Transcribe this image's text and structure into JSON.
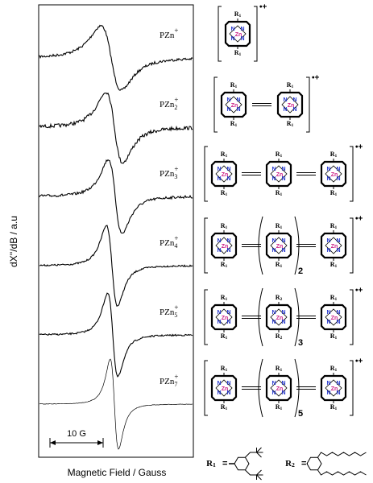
{
  "figure": {
    "y_axis_label": "dX''/dB / a.u",
    "x_axis_label": "Magnetic Field / Gauss",
    "scale_bar": "10 G",
    "traces": [
      {
        "base": "PZn",
        "sup": "+"
      },
      {
        "base": "PZn",
        "sub": "2",
        "sup": "+"
      },
      {
        "base": "PZn",
        "sub": "3",
        "sup": "+"
      },
      {
        "base": "PZn",
        "sub": "4",
        "sup": "+"
      },
      {
        "base": "PZn",
        "sub": "5",
        "sup": "+"
      },
      {
        "base": "PZn",
        "sub": "7",
        "sup": "+"
      }
    ],
    "atoms": {
      "metal": "Zn",
      "nitrogen": "N"
    },
    "substituents": {
      "R1": {
        "letter": "R",
        "index": "1"
      },
      "R2": {
        "letter": "R",
        "index": "2"
      }
    },
    "structures": [
      {
        "units": [
          "R1"
        ],
        "charge": "•+"
      },
      {
        "units": [
          "R1",
          "R1"
        ],
        "charge": "•+"
      },
      {
        "units": [
          "R1",
          "R1",
          "R1"
        ],
        "charge": "•+"
      },
      {
        "units": [
          "R1",
          "R1",
          "R1"
        ],
        "repeat": "2",
        "charge": "•+"
      },
      {
        "units": [
          "R1",
          "R2",
          "R1"
        ],
        "repeat": "3",
        "charge": "•+"
      },
      {
        "units": [
          "R1",
          "R1",
          "R1"
        ],
        "repeat": "5",
        "charge": "•+"
      }
    ],
    "legend": [
      "R1",
      "R2"
    ],
    "legend_sign": "="
  }
}
